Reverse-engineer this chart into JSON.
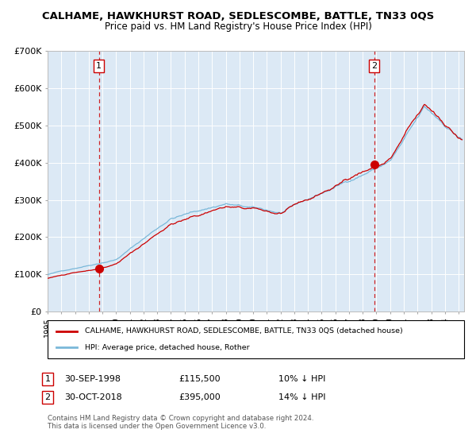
{
  "title": "CALHAME, HAWKHURST ROAD, SEDLESCOMBE, BATTLE, TN33 0QS",
  "subtitle": "Price paid vs. HM Land Registry's House Price Index (HPI)",
  "legend_line1": "CALHAME, HAWKHURST ROAD, SEDLESCOMBE, BATTLE, TN33 0QS (detached house)",
  "legend_line2": "HPI: Average price, detached house, Rother",
  "footnote": "Contains HM Land Registry data © Crown copyright and database right 2024.\nThis data is licensed under the Open Government Licence v3.0.",
  "sale1_date": "30-SEP-1998",
  "sale1_price": 115500,
  "sale1_hpi_pct": "10% ↓ HPI",
  "sale2_date": "30-OCT-2018",
  "sale2_price": 395000,
  "sale2_hpi_pct": "14% ↓ HPI",
  "hpi_color": "#7ab8d9",
  "price_color": "#cc0000",
  "vline_color": "#cc0000",
  "plot_bg": "#dce9f5",
  "grid_color": "#ffffff",
  "ylim": [
    0,
    700000
  ],
  "yticks": [
    0,
    100000,
    200000,
    300000,
    400000,
    500000,
    600000,
    700000
  ],
  "start_year": 1995,
  "end_year": 2025,
  "sale1_x": 1998.75,
  "sale2_x": 2018.83
}
